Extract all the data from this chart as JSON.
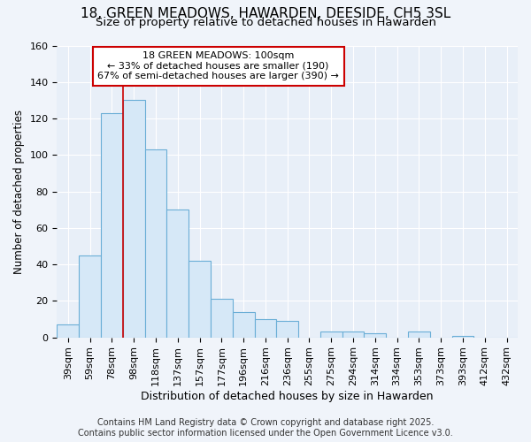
{
  "title": "18, GREEN MEADOWS, HAWARDEN, DEESIDE, CH5 3SL",
  "subtitle": "Size of property relative to detached houses in Hawarden",
  "xlabel": "Distribution of detached houses by size in Hawarden",
  "ylabel": "Number of detached properties",
  "categories": [
    "39sqm",
    "59sqm",
    "78sqm",
    "98sqm",
    "118sqm",
    "137sqm",
    "157sqm",
    "177sqm",
    "196sqm",
    "216sqm",
    "236sqm",
    "255sqm",
    "275sqm",
    "294sqm",
    "314sqm",
    "334sqm",
    "353sqm",
    "373sqm",
    "393sqm",
    "412sqm",
    "432sqm"
  ],
  "values": [
    7,
    45,
    123,
    130,
    103,
    70,
    42,
    21,
    14,
    10,
    9,
    0,
    3,
    3,
    2,
    0,
    3,
    0,
    1,
    0,
    0
  ],
  "bar_color": "#d6e8f7",
  "bar_edge_color": "#6aaed6",
  "vline_index": 3,
  "vline_color": "#cc0000",
  "ylim": [
    0,
    160
  ],
  "yticks": [
    0,
    20,
    40,
    60,
    80,
    100,
    120,
    140,
    160
  ],
  "annotation_line1": "18 GREEN MEADOWS: 100sqm",
  "annotation_line2": "← 33% of detached houses are smaller (190)",
  "annotation_line3": "67% of semi-detached houses are larger (390) →",
  "annotation_box_color": "#ffffff",
  "annotation_box_edge_color": "#cc0000",
  "footer_line1": "Contains HM Land Registry data © Crown copyright and database right 2025.",
  "footer_line2": "Contains public sector information licensed under the Open Government Licence v3.0.",
  "bg_color": "#f0f4fa",
  "plot_bg_color": "#e8eff8",
  "title_fontsize": 11,
  "subtitle_fontsize": 9.5,
  "ylabel_fontsize": 8.5,
  "xlabel_fontsize": 9,
  "tick_fontsize": 8,
  "annotation_fontsize": 8,
  "footer_fontsize": 7
}
